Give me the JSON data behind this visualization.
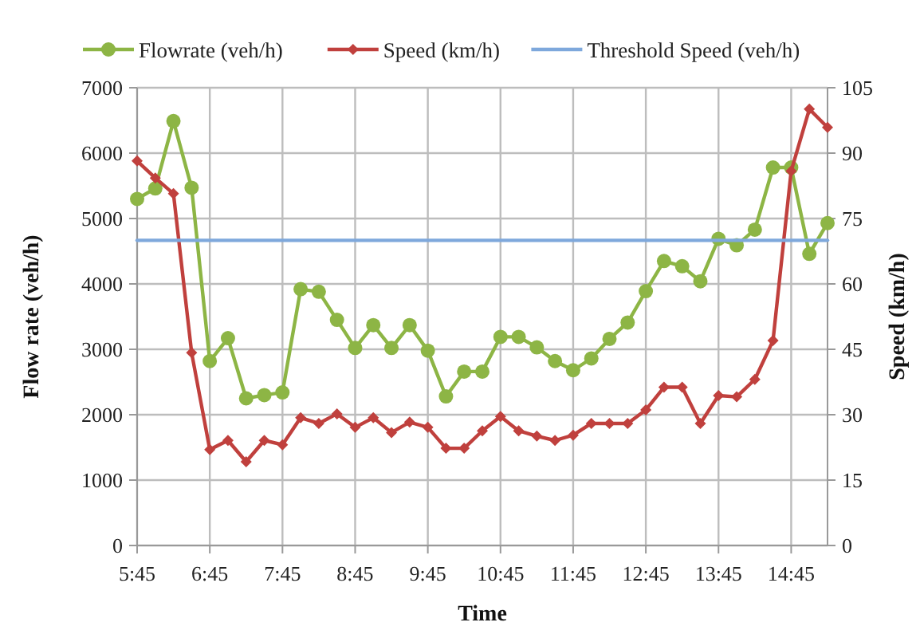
{
  "chart_data": {
    "type": "line",
    "categories": [
      "5:45",
      null,
      null,
      null,
      "6:45",
      null,
      null,
      null,
      "7:45",
      null,
      null,
      null,
      "8:45",
      null,
      null,
      null,
      "9:45",
      null,
      null,
      null,
      "10:45",
      null,
      null,
      null,
      "11:45",
      null,
      null,
      null,
      "12:45",
      null,
      null,
      null,
      "13:45",
      null,
      null,
      null,
      "14:45",
      null,
      null
    ],
    "series": [
      {
        "name": "Flowrate (veh/h)",
        "color": "#8db545",
        "marker": "circle",
        "values": [
          5300,
          5460,
          6490,
          5470,
          2820,
          3170,
          2250,
          2300,
          2340,
          3920,
          3880,
          3450,
          3020,
          3370,
          3020,
          3370,
          2980,
          2280,
          2660,
          2660,
          3190,
          3190,
          3030,
          2820,
          2680,
          2860,
          3160,
          3410,
          3890,
          4350,
          4270,
          4040,
          4690,
          4590,
          4830,
          5780,
          5780,
          4460,
          4930
        ]
      },
      {
        "name": "Speed (km/h)",
        "color": "#c0403d",
        "marker": "diamond",
        "axis": "y2",
        "values": [
          88.2,
          84.3,
          80.7,
          44.2,
          22.0,
          24.1,
          19.2,
          24.1,
          23.1,
          29.3,
          28.0,
          30.2,
          27.1,
          29.3,
          25.9,
          28.3,
          27.1,
          22.3,
          22.3,
          26.3,
          29.6,
          26.3,
          25.1,
          24.1,
          25.3,
          28.0,
          28.0,
          28.0,
          31.1,
          36.3,
          36.3,
          28.0,
          34.4,
          34.1,
          38.1,
          47.0,
          85.9,
          100.1,
          95.9
        ]
      },
      {
        "name": "Threshold Speed (veh/h)",
        "color": "#7ea8dc",
        "marker": "none",
        "axis": "y2",
        "values": [
          70,
          70,
          70,
          70,
          70,
          70,
          70,
          70,
          70,
          70,
          70,
          70,
          70,
          70,
          70,
          70,
          70,
          70,
          70,
          70,
          70,
          70,
          70,
          70,
          70,
          70,
          70,
          70,
          70,
          70,
          70,
          70,
          70,
          70,
          70,
          70,
          70,
          70,
          70
        ]
      }
    ],
    "xlabel": "Time",
    "ylabel": "Flow rate (veh/h)",
    "y2label": "Speed (km/h)",
    "ylim": [
      0,
      7000
    ],
    "yticks": [
      0,
      1000,
      2000,
      3000,
      4000,
      5000,
      6000,
      7000
    ],
    "y2lim": [
      0,
      105
    ],
    "y2ticks": [
      0,
      15,
      30,
      45,
      60,
      75,
      90,
      105
    ],
    "grid": true,
    "legend": "top",
    "line_style": "solid"
  }
}
